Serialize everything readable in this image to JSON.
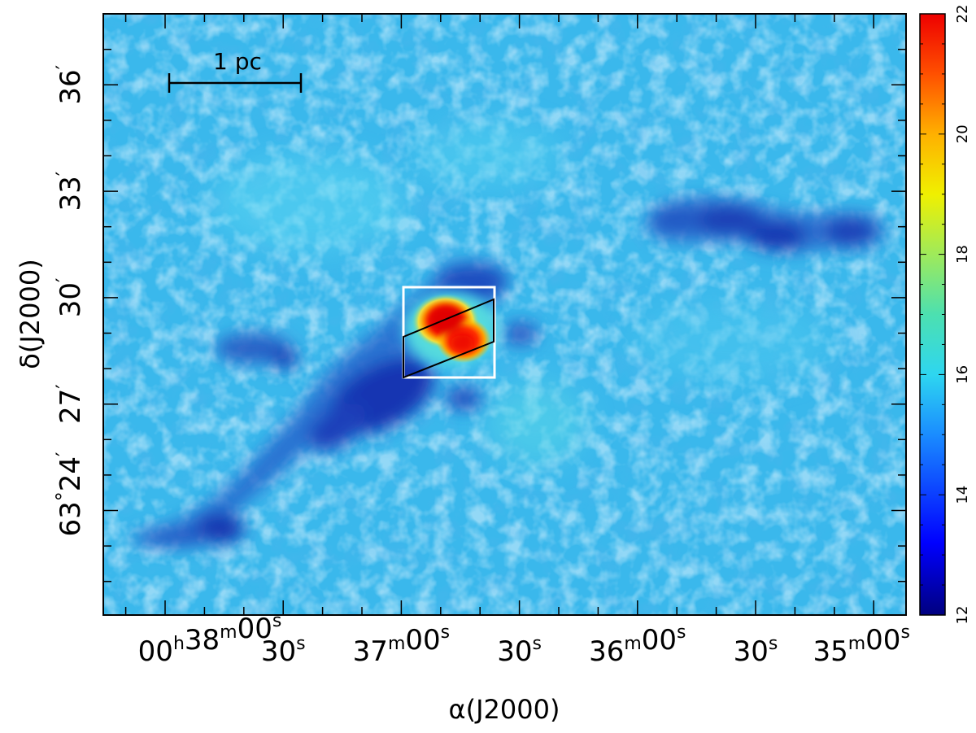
{
  "chart_data": {
    "type": "heatmap",
    "title": "",
    "xlabel": "α(J2000)",
    "ylabel": "δ(J2000)",
    "x_ticks": [
      {
        "h": "00",
        "m": "38",
        "s": "00",
        "label": "00h38m00s"
      },
      {
        "h": "",
        "m": "",
        "s": "30",
        "label": "30s"
      },
      {
        "h": "",
        "m": "37",
        "s": "00",
        "label": "37m00s"
      },
      {
        "h": "",
        "m": "",
        "s": "30",
        "label": "30s"
      },
      {
        "h": "",
        "m": "36",
        "s": "00",
        "label": "36m00s"
      },
      {
        "h": "",
        "m": "",
        "s": "30",
        "label": "30s"
      },
      {
        "h": "",
        "m": "35",
        "s": "00",
        "label": "35m00s"
      }
    ],
    "y_ticks": [
      {
        "deg": "63",
        "min": "24",
        "label": "63°24′"
      },
      {
        "deg": "",
        "min": "27",
        "label": "27′"
      },
      {
        "deg": "",
        "min": "30",
        "label": "30′"
      },
      {
        "deg": "",
        "min": "33",
        "label": "33′"
      },
      {
        "deg": "",
        "min": "36",
        "label": "36′"
      }
    ],
    "colorbar": {
      "min": 12,
      "max": 22,
      "ticks": [
        "12",
        "14",
        "16",
        "18",
        "20",
        "22"
      ],
      "colormap": "jet"
    },
    "scalebar_label": "1 pc",
    "features": [
      {
        "name": "hot-core",
        "peak_value": 22
      },
      {
        "name": "cold-filament-southwest",
        "value": 13
      },
      {
        "name": "cold-clump-west",
        "value": 13
      }
    ],
    "background_value": 15,
    "colors": {
      "hot": "#ff1a00",
      "background": "#3ac4ee",
      "cold": "#1530b8",
      "box": "#ffffff",
      "parallelogram": "#000000"
    }
  }
}
